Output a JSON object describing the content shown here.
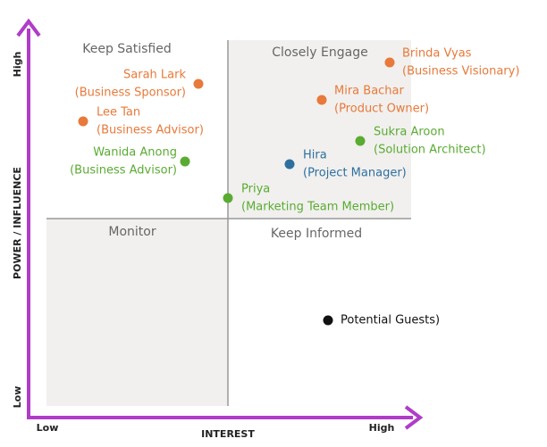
{
  "axes": {
    "y_label": "POWER / INFLUENCE",
    "x_label": "INTEREST",
    "y_high": "High",
    "y_low": "Low",
    "x_low": "Low",
    "x_high": "High"
  },
  "quadrants": [
    "Keep Satisfied",
    "Closely Engage",
    "Monitor",
    "Keep Informed"
  ],
  "stakeholders": [
    {
      "name": "Brinda Vyas",
      "role": "(Business Visionary)"
    },
    {
      "name": "Sarah Lark",
      "role": "(Business Sponsor)"
    },
    {
      "name": "Mira Bachar",
      "role": "(Product Owner)"
    },
    {
      "name": "Lee Tan",
      "role": "(Business Advisor)"
    },
    {
      "name": "Sukra Aroon",
      "role": "(Solution Architect)"
    },
    {
      "name": "Wanida Anong",
      "role": "(Business Advisor)"
    },
    {
      "name": "Hira",
      "role": "(Project Manager)"
    },
    {
      "name": "Priya",
      "role": "(Marketing Team Member)"
    },
    {
      "name": "Potential Guests)"
    }
  ]
}
